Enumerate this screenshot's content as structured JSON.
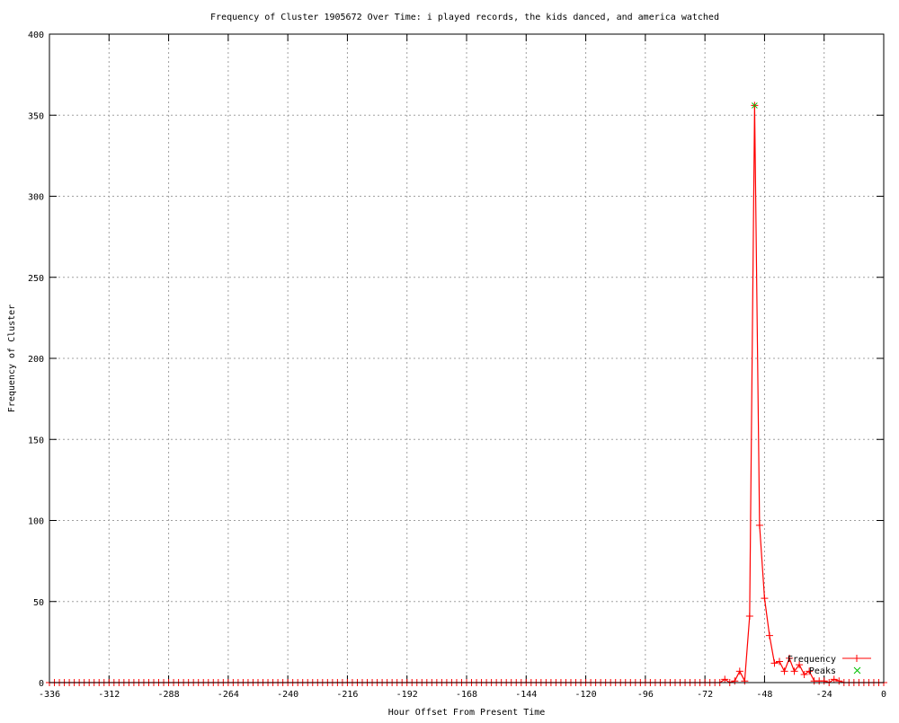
{
  "chart_data": {
    "type": "line",
    "title": "Frequency of Cluster 1905672 Over Time: i played records, the kids danced, and america watched",
    "xlabel": "Hour Offset From Present Time",
    "ylabel": "Frequency of Cluster",
    "xlim": [
      -336,
      0
    ],
    "ylim": [
      0,
      400
    ],
    "xticks": [
      -336,
      -312,
      -288,
      -264,
      -240,
      -216,
      -192,
      -168,
      -144,
      -120,
      -96,
      -72,
      -48,
      -24,
      0
    ],
    "yticks": [
      0,
      50,
      100,
      150,
      200,
      250,
      300,
      350,
      400
    ],
    "grid": true,
    "legend_position": "bottom-right",
    "series": [
      {
        "name": "Frequency",
        "color": "#ff0000",
        "marker": "plus",
        "x": [
          -336,
          -334,
          -332,
          -330,
          -328,
          -326,
          -324,
          -322,
          -320,
          -318,
          -316,
          -314,
          -312,
          -310,
          -308,
          -306,
          -304,
          -302,
          -300,
          -298,
          -296,
          -294,
          -292,
          -290,
          -288,
          -286,
          -284,
          -282,
          -280,
          -278,
          -276,
          -274,
          -272,
          -270,
          -268,
          -266,
          -264,
          -262,
          -260,
          -258,
          -256,
          -254,
          -252,
          -250,
          -248,
          -246,
          -244,
          -242,
          -240,
          -238,
          -236,
          -234,
          -232,
          -230,
          -228,
          -226,
          -224,
          -222,
          -220,
          -218,
          -216,
          -214,
          -212,
          -210,
          -208,
          -206,
          -204,
          -202,
          -200,
          -198,
          -196,
          -194,
          -192,
          -190,
          -188,
          -186,
          -184,
          -182,
          -180,
          -178,
          -176,
          -174,
          -172,
          -170,
          -168,
          -166,
          -164,
          -162,
          -160,
          -158,
          -156,
          -154,
          -152,
          -150,
          -148,
          -146,
          -144,
          -142,
          -140,
          -138,
          -136,
          -134,
          -132,
          -130,
          -128,
          -126,
          -124,
          -122,
          -120,
          -118,
          -116,
          -114,
          -112,
          -110,
          -108,
          -106,
          -104,
          -102,
          -100,
          -98,
          -96,
          -94,
          -92,
          -90,
          -88,
          -86,
          -84,
          -82,
          -80,
          -78,
          -76,
          -74,
          -72,
          -70,
          -68,
          -66,
          -64,
          -62,
          -60,
          -58,
          -56,
          -54,
          -52,
          -50,
          -48,
          -46,
          -44,
          -42,
          -40,
          -38,
          -36,
          -34,
          -32,
          -30,
          -28,
          -26,
          -24,
          -22,
          -20,
          -18,
          -16,
          -14,
          -12,
          -10,
          -8,
          -6,
          -4,
          -2,
          0
        ],
        "y": [
          0,
          0,
          0,
          0,
          0,
          0,
          0,
          0,
          0,
          0,
          0,
          0,
          0,
          0,
          0,
          0,
          0,
          0,
          0,
          0,
          0,
          0,
          0,
          0,
          0,
          0,
          0,
          0,
          0,
          0,
          0,
          0,
          0,
          0,
          0,
          0,
          0,
          0,
          0,
          0,
          0,
          0,
          0,
          0,
          0,
          0,
          0,
          0,
          0,
          0,
          0,
          0,
          0,
          0,
          0,
          0,
          0,
          0,
          0,
          0,
          0,
          0,
          0,
          0,
          0,
          0,
          0,
          0,
          0,
          0,
          0,
          0,
          0,
          0,
          0,
          0,
          0,
          0,
          0,
          0,
          0,
          0,
          0,
          0,
          0,
          0,
          0,
          0,
          0,
          0,
          0,
          0,
          0,
          0,
          0,
          0,
          0,
          0,
          0,
          0,
          0,
          0,
          0,
          0,
          0,
          0,
          0,
          0,
          0,
          0,
          0,
          0,
          0,
          0,
          0,
          0,
          0,
          0,
          0,
          0,
          0,
          0,
          0,
          0,
          0,
          0,
          0,
          0,
          0,
          0,
          0,
          0,
          0,
          0,
          0,
          0,
          2,
          0,
          1,
          7,
          1,
          41,
          356,
          97,
          52,
          29,
          12,
          13,
          7,
          15,
          7,
          11,
          5,
          7,
          1,
          1,
          1,
          0,
          2,
          1,
          0,
          0,
          0,
          0,
          0,
          0,
          0,
          0,
          0
        ]
      },
      {
        "name": "Peaks",
        "color": "#00c000",
        "marker": "x",
        "x": [
          -52
        ],
        "y": [
          356
        ]
      }
    ]
  }
}
